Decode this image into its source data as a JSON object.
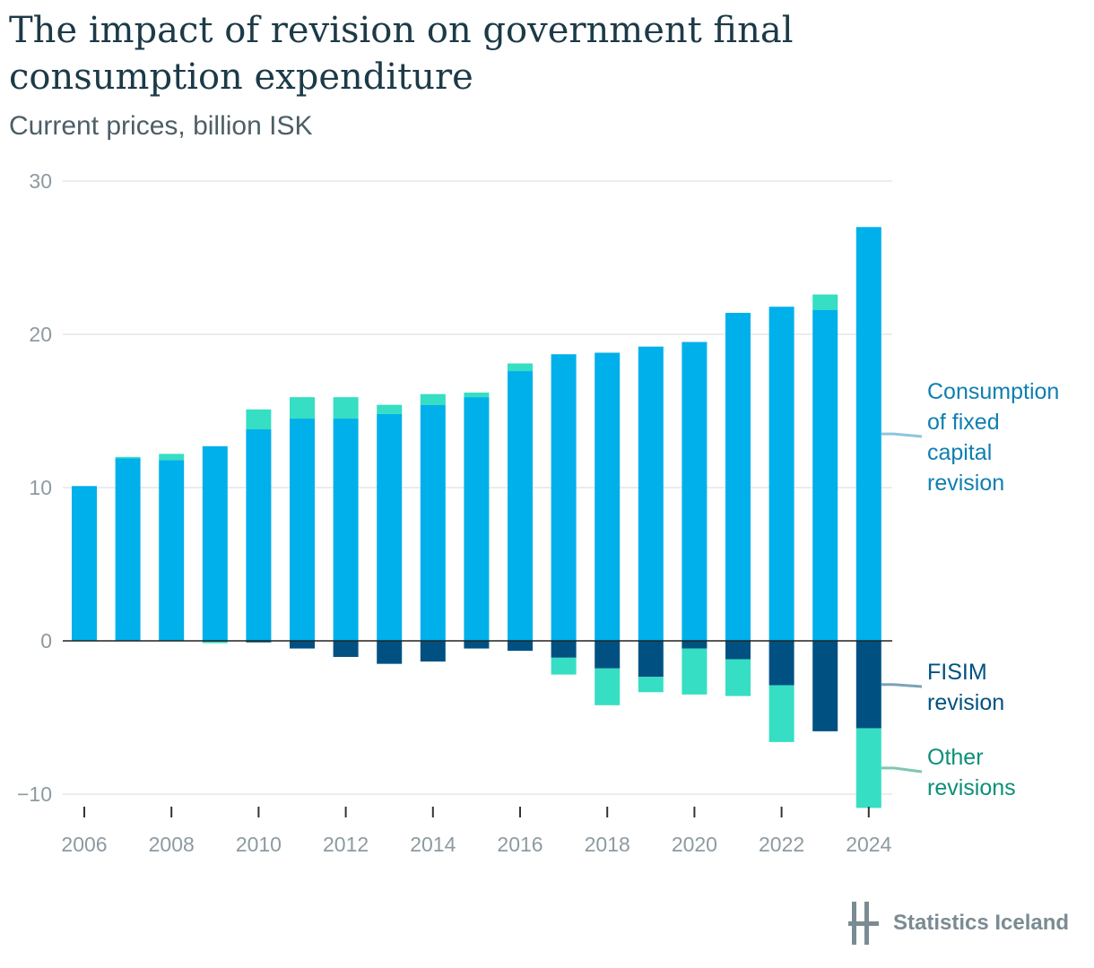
{
  "header": {
    "title": "The impact of revision on government final consumption expenditure",
    "subtitle": "Current prices, billion ISK"
  },
  "colors": {
    "cfc": "#00b0ea",
    "fisim": "#005182",
    "other": "#36dec3",
    "grid": "#e3e6e8",
    "zero_line": "#222222",
    "tick_text": "#8d9aa1"
  },
  "chart_data": {
    "type": "bar",
    "stacked": true,
    "x": [
      2006,
      2007,
      2008,
      2009,
      2010,
      2011,
      2012,
      2013,
      2014,
      2015,
      2016,
      2017,
      2018,
      2019,
      2020,
      2021,
      2022,
      2023,
      2024
    ],
    "x_tick_labels": [
      "2006",
      "2008",
      "2010",
      "2012",
      "2014",
      "2016",
      "2018",
      "2020",
      "2022",
      "2024"
    ],
    "y_ticks": [
      -10,
      0,
      10,
      20,
      30
    ],
    "y_tick_labels": [
      "−10",
      "0",
      "10",
      "20",
      "30"
    ],
    "ylim": [
      -11,
      30.5
    ],
    "grid": true,
    "legend_placement": "right",
    "series": [
      {
        "name": "Consumption of fixed capital revision",
        "label_lines": [
          "Consumption",
          "of fixed",
          "capital",
          "revision"
        ],
        "color_key": "cfc",
        "values": [
          10.1,
          11.9,
          11.8,
          12.7,
          13.8,
          14.5,
          14.5,
          14.8,
          15.4,
          15.9,
          17.6,
          18.7,
          18.8,
          19.2,
          19.5,
          21.4,
          21.8,
          21.6,
          27.0
        ]
      },
      {
        "name": "FISIM revision",
        "label_lines": [
          "FISIM",
          "revision"
        ],
        "color_key": "fisim",
        "values": [
          0.0,
          0.0,
          0.0,
          -0.05,
          -0.1,
          -0.5,
          -1.05,
          -1.5,
          -1.35,
          -0.5,
          -0.65,
          -1.1,
          -1.8,
          -2.35,
          -0.5,
          -1.2,
          -2.9,
          -5.9,
          -5.7
        ]
      },
      {
        "name": "Other revisions",
        "label_lines": [
          "Other",
          "revisions"
        ],
        "color_key": "other",
        "values": [
          0.0,
          0.1,
          0.4,
          -0.1,
          1.3,
          1.4,
          1.4,
          0.6,
          0.7,
          0.3,
          0.5,
          -1.1,
          -2.4,
          -1.0,
          -3.0,
          -2.4,
          -3.7,
          1.0,
          -5.2
        ]
      }
    ]
  },
  "footer": {
    "logo_text": "Statistics Iceland"
  }
}
